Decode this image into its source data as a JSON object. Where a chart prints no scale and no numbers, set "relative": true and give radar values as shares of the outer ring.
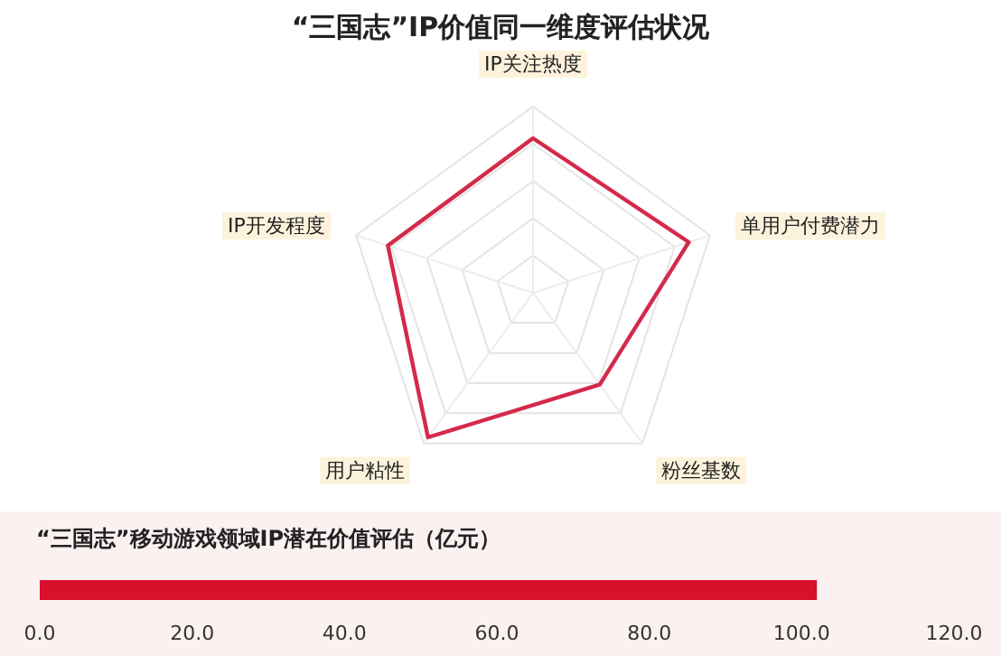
{
  "chart_data": [
    {
      "type": "radar",
      "title": "“三国志”IP价值同一维度评估状况",
      "categories": [
        "IP关注热度",
        "单用户付费潜力",
        "粉丝基数",
        "用户粘性",
        "IP开发程度"
      ],
      "relative": true,
      "series": [
        {
          "color": "#d42a4a",
          "values": [
            0.83,
            0.88,
            0.61,
            0.96,
            0.82
          ]
        }
      ]
    },
    {
      "type": "bar",
      "orientation": "horizontal",
      "title": "“三国志”移动游戏领域IP潜在价值评估（亿元）",
      "categories": [
        null
      ],
      "values": [
        102
      ],
      "color": "#d8102c",
      "xlim": [
        0,
        120
      ],
      "xticks": [
        {
          "value": 0,
          "label": "0.0"
        },
        {
          "value": 20,
          "label": "20.0"
        },
        {
          "value": 40,
          "label": "40.0"
        },
        {
          "value": 60,
          "label": "60.0"
        },
        {
          "value": 80,
          "label": "80.0"
        },
        {
          "value": 100,
          "label": "100.0"
        },
        {
          "value": 120,
          "label": "120.0"
        }
      ]
    }
  ]
}
